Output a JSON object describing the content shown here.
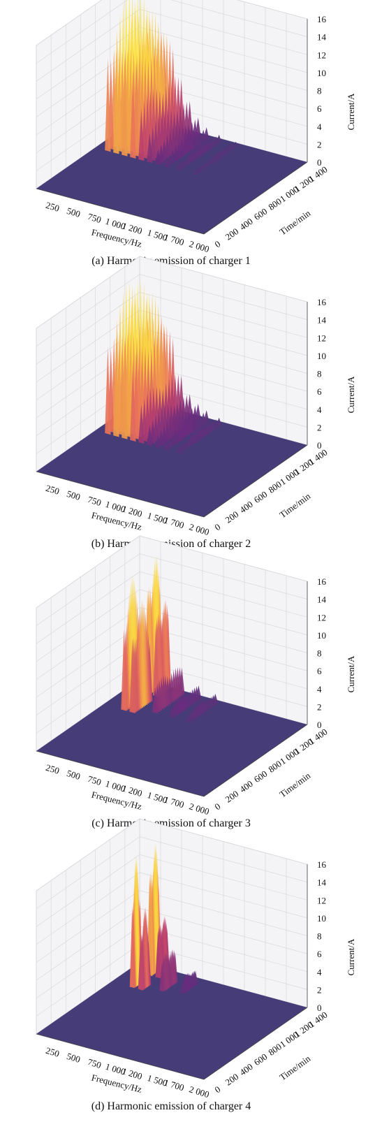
{
  "figure": {
    "panels": [
      {
        "caption": "(a) Harmonic emission of charger 1"
      },
      {
        "caption": "(b) Harmonic emission of charger 2"
      },
      {
        "caption": "(c) Harmonic emission of charger 3"
      },
      {
        "caption": "(d) Harmonic emission of charger 4"
      }
    ]
  },
  "colors": {
    "floor": "#453c78",
    "low": "#6a2d7e",
    "mid": "#b83e6e",
    "high": "#e8705a",
    "top": "#f7c53c",
    "peak": "#fbe74a",
    "pane": "#f4f4f6",
    "grid": "#d9d9dd"
  },
  "chart_data": [
    {
      "type": "surface3d",
      "title": "(a) Harmonic emission of charger 1",
      "xlabel": "Frequency/Hz",
      "ylabel": "Time/min",
      "zlabel": "Current/A",
      "xticks": [
        "250",
        "500",
        "750",
        "1 000",
        "1 200",
        "1 500",
        "1 700",
        "2 000"
      ],
      "yticks": [
        "0",
        "200",
        "400",
        "600",
        "800",
        "1 000",
        "1 200",
        "1 400"
      ],
      "zticks": [
        "0",
        "2",
        "4",
        "6",
        "8",
        "10",
        "12",
        "14",
        "16"
      ],
      "xlim": [
        0,
        2000
      ],
      "ylim": [
        0,
        1440
      ],
      "zlim": [
        0,
        16
      ],
      "peaks": [
        {
          "f": 150,
          "t": 1100,
          "amp": 16.5,
          "width_f": 35,
          "width_t": 300
        },
        {
          "f": 250,
          "t": 1100,
          "amp": 16.5,
          "width_f": 35,
          "width_t": 300
        },
        {
          "f": 350,
          "t": 1100,
          "amp": 15,
          "width_f": 35,
          "width_t": 300
        },
        {
          "f": 450,
          "t": 1100,
          "amp": 13,
          "width_f": 35,
          "width_t": 300
        },
        {
          "f": 550,
          "t": 1100,
          "amp": 8,
          "width_f": 35,
          "width_t": 300
        },
        {
          "f": 650,
          "t": 1100,
          "amp": 5,
          "width_f": 35,
          "width_t": 300
        },
        {
          "f": 750,
          "t": 1100,
          "amp": 3,
          "width_f": 35,
          "width_t": 300
        },
        {
          "f": 850,
          "t": 1100,
          "amp": 2,
          "width_f": 35,
          "width_t": 300
        },
        {
          "f": 1000,
          "t": 1100,
          "amp": 1.5,
          "width_f": 35,
          "width_t": 300
        },
        {
          "f": 1200,
          "t": 1100,
          "amp": 1,
          "width_f": 35,
          "width_t": 300
        }
      ]
    },
    {
      "type": "surface3d",
      "title": "(b) Harmonic emission of charger 2",
      "xlabel": "Frequency/Hz",
      "ylabel": "Time/min",
      "zlabel": "Current/A",
      "xticks": [
        "250",
        "500",
        "750",
        "1 000",
        "1 200",
        "1 500",
        "1 700",
        "2 000"
      ],
      "yticks": [
        "0",
        "200",
        "400",
        "600",
        "800",
        "1 000",
        "1 200",
        "1 400"
      ],
      "zticks": [
        "0",
        "2",
        "4",
        "6",
        "8",
        "10",
        "12",
        "14",
        "16"
      ],
      "xlim": [
        0,
        2000
      ],
      "ylim": [
        0,
        1440
      ],
      "zlim": [
        0,
        16
      ],
      "peaks": [
        {
          "f": 150,
          "t": 1100,
          "amp": 15.5,
          "width_f": 35,
          "width_t": 300
        },
        {
          "f": 250,
          "t": 1100,
          "amp": 16,
          "width_f": 35,
          "width_t": 300
        },
        {
          "f": 350,
          "t": 1100,
          "amp": 15,
          "width_f": 35,
          "width_t": 300
        },
        {
          "f": 450,
          "t": 1100,
          "amp": 12,
          "width_f": 35,
          "width_t": 300
        },
        {
          "f": 550,
          "t": 1100,
          "amp": 6,
          "width_f": 35,
          "width_t": 300
        },
        {
          "f": 650,
          "t": 1100,
          "amp": 3.5,
          "width_f": 35,
          "width_t": 300
        },
        {
          "f": 750,
          "t": 1100,
          "amp": 2.5,
          "width_f": 35,
          "width_t": 300
        },
        {
          "f": 850,
          "t": 1100,
          "amp": 2,
          "width_f": 35,
          "width_t": 300
        },
        {
          "f": 1000,
          "t": 1100,
          "amp": 1.5,
          "width_f": 35,
          "width_t": 300
        }
      ]
    },
    {
      "type": "surface3d",
      "title": "(c) Harmonic emission of charger 3",
      "xlabel": "Frequency/Hz",
      "ylabel": "Time/min",
      "zlabel": "Current/A",
      "xticks": [
        "250",
        "500",
        "750",
        "1 000",
        "1 200",
        "1 500",
        "1 700",
        "2 000"
      ],
      "yticks": [
        "0",
        "200",
        "400",
        "600",
        "800",
        "1 000",
        "1 200",
        "1 400"
      ],
      "zticks": [
        "0",
        "2",
        "4",
        "6",
        "8",
        "10",
        "12",
        "14",
        "16"
      ],
      "xlim": [
        0,
        2000
      ],
      "ylim": [
        0,
        1440
      ],
      "zlim": [
        0,
        16
      ],
      "peaks": [
        {
          "f": 250,
          "t": 1050,
          "amp": 14.5,
          "width_f": 35,
          "width_t": 130
        },
        {
          "f": 350,
          "t": 1050,
          "amp": 12,
          "width_f": 35,
          "width_t": 130
        },
        {
          "f": 250,
          "t": 1350,
          "amp": 15.5,
          "width_f": 35,
          "width_t": 100
        },
        {
          "f": 350,
          "t": 1350,
          "amp": 11,
          "width_f": 35,
          "width_t": 100
        },
        {
          "f": 550,
          "t": 1200,
          "amp": 4,
          "width_f": 35,
          "width_t": 200
        },
        {
          "f": 750,
          "t": 1200,
          "amp": 2,
          "width_f": 35,
          "width_t": 200
        },
        {
          "f": 950,
          "t": 1200,
          "amp": 1.5,
          "width_f": 35,
          "width_t": 200
        }
      ]
    },
    {
      "type": "surface3d",
      "title": "(d) Harmonic emission of charger 4",
      "xlabel": "Frequency/Hz",
      "ylabel": "Time/min",
      "zlabel": "Current/A",
      "xticks": [
        "250",
        "500",
        "750",
        "1 000",
        "1 200",
        "1 500",
        "1 700",
        "2 000"
      ],
      "yticks": [
        "0",
        "200",
        "400",
        "600",
        "800",
        "1 000",
        "1 200",
        "1 400"
      ],
      "zticks": [
        "0",
        "2",
        "4",
        "6",
        "8",
        "10",
        "12",
        "14",
        "16"
      ],
      "xlim": [
        0,
        2000
      ],
      "ylim": [
        0,
        1440
      ],
      "zlim": [
        0,
        16
      ],
      "peaks": [
        {
          "f": 250,
          "t": 1100,
          "amp": 14.5,
          "width_f": 30,
          "width_t": 60
        },
        {
          "f": 350,
          "t": 1100,
          "amp": 9,
          "width_f": 30,
          "width_t": 60
        },
        {
          "f": 250,
          "t": 1350,
          "amp": 15,
          "width_f": 30,
          "width_t": 70
        },
        {
          "f": 350,
          "t": 1350,
          "amp": 7,
          "width_f": 30,
          "width_t": 70
        },
        {
          "f": 550,
          "t": 1200,
          "amp": 4.5,
          "width_f": 30,
          "width_t": 100
        },
        {
          "f": 750,
          "t": 1250,
          "amp": 2,
          "width_f": 30,
          "width_t": 100
        }
      ]
    }
  ]
}
